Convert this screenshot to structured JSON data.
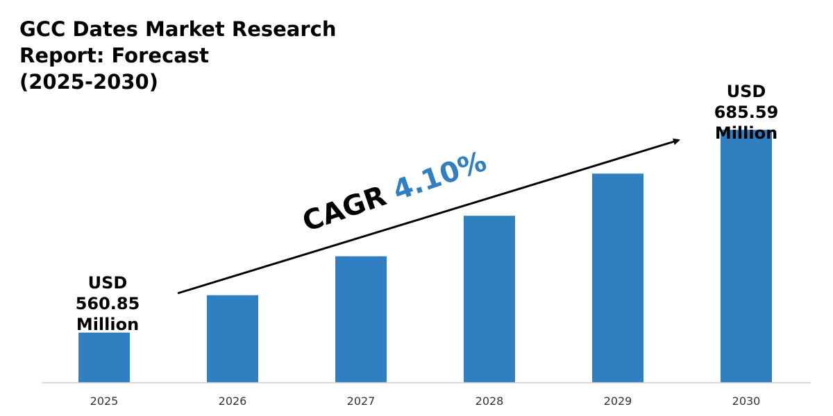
{
  "colors": {
    "bar": "#2f7fc1",
    "cagr_value": "#2f7fc1",
    "axis": "#d0d0d0"
  },
  "title": {
    "line1": "GCC Dates Market Research",
    "line2": "Report: Forecast",
    "line3": "(2025-2030)"
  },
  "annotations": {
    "start": {
      "line1": "USD",
      "line2": "560.85",
      "line3": "Million"
    },
    "end": {
      "line1": "USD",
      "line2": "685.59",
      "line3": "Million"
    },
    "cagr_label": "CAGR",
    "cagr_value": "4.10%"
  },
  "chart_data": {
    "type": "bar",
    "title": "GCC Dates Market Research Report: Forecast (2025-2030)",
    "categories": [
      "2025",
      "2026",
      "2027",
      "2028",
      "2029",
      "2030"
    ],
    "values": [
      560.85,
      583.85,
      607.79,
      632.71,
      658.65,
      685.59
    ],
    "unit": "USD Million",
    "ylim": [
      530,
      710
    ],
    "grid": false,
    "legend": "none"
  }
}
